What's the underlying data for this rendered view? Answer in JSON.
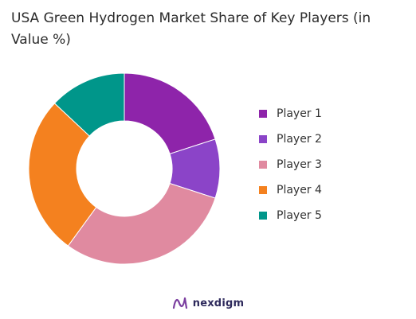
{
  "chart_data": {
    "type": "pie",
    "variant": "donut",
    "title": "USA Green Hydrogen Market Share of Key Players (in Value %)",
    "categories": [
      "Player 1",
      "Player 2",
      "Player 3",
      "Player 4",
      "Player 5"
    ],
    "values": [
      20,
      10,
      30,
      27,
      13
    ],
    "colors": [
      "#8e24aa",
      "#8b44c8",
      "#e08aa0",
      "#f4811f",
      "#00968a"
    ],
    "legend_position": "right",
    "start_angle_deg": 0
  },
  "branding": {
    "logo_icon": "nexdigm-logo-icon",
    "text": "nexdigm",
    "color": "#2e2a5c"
  }
}
